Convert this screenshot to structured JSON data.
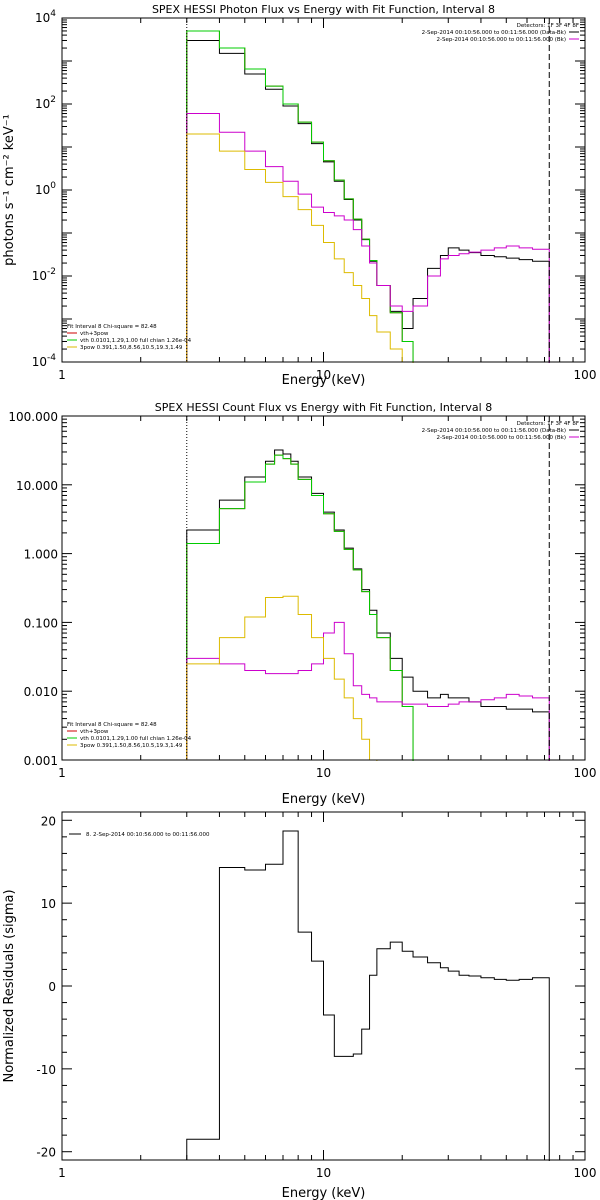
{
  "chart_data": [
    {
      "type": "line",
      "title": "SPEX HESSI Photon Flux vs Energy with Fit Function, Interval 8",
      "xlabel": "Energy (keV)",
      "ylabel": "photons s⁻¹ cm⁻² keV⁻¹",
      "xscale": "log",
      "yscale": "log",
      "xlim": [
        1,
        100
      ],
      "ylim": [
        0.0001,
        10000
      ],
      "x_tick_labels": [
        "1",
        "10",
        "100"
      ],
      "y_tick_labels": [
        "10",
        "10",
        "10",
        "10",
        "10"
      ],
      "y_tick_exponents": [
        "-4",
        "-2",
        "0",
        "2",
        "4"
      ],
      "vlines": [
        {
          "x": 3.0,
          "style": "dotted",
          "color": "#000000"
        },
        {
          "x": 73.0,
          "style": "dashed",
          "color": "#000000"
        }
      ],
      "legend_top_right": [
        {
          "label": "Detectors: 1F 3F 4F 8F",
          "color": null
        },
        {
          "label": "2-Sep-2014 00:10:56.000 to 00:11:56.000 (Data-Bk)",
          "color": "#000000"
        },
        {
          "label": "2-Sep-2014 00:10:56.000 to 00:11:56.000 (Bk)",
          "color": "#cc00cc"
        }
      ],
      "legend_bottom_left": [
        {
          "label": "Fit Interval 8   Chi-square = 82.48",
          "color": null
        },
        {
          "label": "vth+3pow",
          "color": "#cc0000"
        },
        {
          "label": "vth 0.0101,1.29,1.00  full chian 1.26e-04",
          "color": "#00cc00"
        },
        {
          "label": "3pow 0.391,1.50,8.56,10.5,19.3,1.49",
          "color": "#ddbb00"
        }
      ],
      "series": [
        {
          "color": "#000000",
          "edges": [
            3.0,
            4.0,
            5.0,
            6.0,
            7.0,
            8.0,
            9.0,
            10.0,
            11.0,
            12.0,
            13.0,
            14.0,
            15.0,
            16.0,
            18.0,
            20.0,
            22.0,
            25.0,
            28.0,
            30.0,
            33.0,
            36.0,
            40.0,
            45.0,
            50.0,
            56.0,
            63.0,
            73.0
          ],
          "values": [
            3000,
            1500,
            500,
            220,
            90,
            35,
            12,
            4.5,
            1.6,
            0.6,
            0.2,
            0.07,
            0.022,
            0.006,
            0.0015,
            0.0006,
            0.003,
            0.015,
            0.03,
            0.045,
            0.04,
            0.035,
            0.03,
            0.028,
            0.026,
            0.024,
            0.022
          ]
        },
        {
          "color": "#cc0000",
          "edges": [
            3.0,
            4.0,
            5.0,
            6.0,
            7.0,
            8.0,
            9.0,
            10.0,
            11.0,
            12.0,
            13.0,
            14.0,
            15.0,
            16.0,
            18.0,
            20.0,
            22.0
          ],
          "values": [
            5000,
            2000,
            650,
            260,
            100,
            38,
            13,
            4.8,
            1.7,
            0.62,
            0.21,
            0.072,
            0.023,
            0.006,
            0.0014,
            0.0003
          ]
        },
        {
          "color": "#00cc00",
          "edges": [
            3.0,
            4.0,
            5.0,
            6.0,
            7.0,
            8.0,
            9.0,
            10.0,
            11.0,
            12.0,
            13.0,
            14.0,
            15.0,
            16.0,
            18.0,
            20.0,
            22.0
          ],
          "values": [
            5000,
            2000,
            650,
            260,
            100,
            38,
            13,
            4.8,
            1.7,
            0.62,
            0.21,
            0.072,
            0.023,
            0.006,
            0.0014,
            0.0003
          ]
        },
        {
          "color": "#cc00cc",
          "edges": [
            3.0,
            4.0,
            5.0,
            6.0,
            7.0,
            8.0,
            9.0,
            10.0,
            11.0,
            12.0,
            13.0,
            14.0,
            15.0,
            16.0,
            18.0,
            20.0,
            22.0,
            25.0,
            28.0,
            30.0,
            33.0,
            36.0,
            40.0,
            45.0,
            50.0,
            56.0,
            63.0,
            73.0
          ],
          "values": [
            60,
            22,
            8,
            3.5,
            1.6,
            0.8,
            0.4,
            0.3,
            0.25,
            0.2,
            0.12,
            0.05,
            0.02,
            0.006,
            0.002,
            0.0015,
            0.002,
            0.01,
            0.025,
            0.03,
            0.033,
            0.036,
            0.04,
            0.045,
            0.05,
            0.045,
            0.042
          ]
        },
        {
          "color": "#ddbb00",
          "edges": [
            3.0,
            4.0,
            5.0,
            6.0,
            7.0,
            8.0,
            9.0,
            10.0,
            11.0,
            12.0,
            13.0,
            14.0,
            15.0,
            16.0,
            18.0,
            20.0,
            22.0
          ],
          "values": [
            20,
            8,
            3,
            1.5,
            0.7,
            0.35,
            0.15,
            0.06,
            0.025,
            0.012,
            0.006,
            0.003,
            0.0012,
            0.0005,
            0.0002,
            0.0001
          ]
        }
      ]
    },
    {
      "type": "line",
      "title": "SPEX HESSI Count Flux vs Energy with Fit Function, Interval 8",
      "xlabel": "Energy (keV)",
      "ylabel": "",
      "xscale": "log",
      "yscale": "log",
      "xlim": [
        1,
        100
      ],
      "ylim": [
        0.001,
        100
      ],
      "x_tick_labels": [
        "1",
        "10",
        "100"
      ],
      "y_tick_labels": [
        "100.000",
        "10.000",
        "1.000",
        "0.100",
        "0.010",
        "0.001"
      ],
      "vlines": [
        {
          "x": 3.0,
          "style": "dotted",
          "color": "#000000"
        },
        {
          "x": 73.0,
          "style": "dashed",
          "color": "#000000"
        }
      ],
      "legend_top_right": [
        {
          "label": "Detectors: 1F 3F 4F 8F",
          "color": null
        },
        {
          "label": "2-Sep-2014 00:10:56.000 to 00:11:56.000 (Data-Bk)",
          "color": "#000000"
        },
        {
          "label": "2-Sep-2014 00:10:56.000 to 00:11:56.000 (Bk)",
          "color": "#cc00cc"
        }
      ],
      "legend_bottom_left": [
        {
          "label": "Fit Interval 8   Chi-square = 82.48",
          "color": null
        },
        {
          "label": "vth+3pow",
          "color": "#cc0000"
        },
        {
          "label": "vth 0.0101,1.29,1.00  full chian 1.26e-04",
          "color": "#00cc00"
        },
        {
          "label": "3pow 0.391,1.50,8.56,10.5,19.3,1.49",
          "color": "#ddbb00"
        }
      ],
      "series": [
        {
          "color": "#000000",
          "edges": [
            3.0,
            4.0,
            5.0,
            6.0,
            6.5,
            7.0,
            7.5,
            8.0,
            9.0,
            10.0,
            11.0,
            12.0,
            13.0,
            14.0,
            15.0,
            16.0,
            18.0,
            20.0,
            22.0,
            25.0,
            28.0,
            30.0,
            33.0,
            36.0,
            40.0,
            45.0,
            50.0,
            56.0,
            63.0,
            73.0
          ],
          "values": [
            2.2,
            6.0,
            13.0,
            22.0,
            32.0,
            28.0,
            22.0,
            13.0,
            7.5,
            4.0,
            2.2,
            1.2,
            0.6,
            0.3,
            0.15,
            0.07,
            0.03,
            0.016,
            0.01,
            0.008,
            0.009,
            0.008,
            0.008,
            0.007,
            0.006,
            0.006,
            0.0055,
            0.0055,
            0.005
          ]
        },
        {
          "color": "#cc0000",
          "edges": [
            3.0,
            4.0,
            5.0,
            6.0,
            6.5,
            7.0,
            7.5,
            8.0,
            9.0,
            10.0,
            11.0,
            12.0,
            13.0,
            14.0,
            15.0,
            16.0,
            18.0,
            20.0,
            22.0
          ],
          "values": [
            1.4,
            4.5,
            11.0,
            20.0,
            27.0,
            24.0,
            20.0,
            12.0,
            7.0,
            3.8,
            2.1,
            1.15,
            0.58,
            0.28,
            0.13,
            0.06,
            0.02,
            0.006
          ]
        },
        {
          "color": "#00cc00",
          "edges": [
            3.0,
            4.0,
            5.0,
            6.0,
            6.5,
            7.0,
            7.5,
            8.0,
            9.0,
            10.0,
            11.0,
            12.0,
            13.0,
            14.0,
            15.0,
            16.0,
            18.0,
            20.0,
            22.0
          ],
          "values": [
            1.4,
            4.5,
            11.0,
            20.0,
            27.0,
            24.0,
            20.0,
            12.0,
            7.0,
            3.8,
            2.1,
            1.15,
            0.58,
            0.28,
            0.13,
            0.06,
            0.02,
            0.006
          ]
        },
        {
          "color": "#cc00cc",
          "edges": [
            3.0,
            4.0,
            5.0,
            6.0,
            7.0,
            8.0,
            9.0,
            10.0,
            11.0,
            12.0,
            13.0,
            14.0,
            15.0,
            16.0,
            18.0,
            20.0,
            22.0,
            25.0,
            28.0,
            30.0,
            33.0,
            36.0,
            40.0,
            45.0,
            50.0,
            56.0,
            63.0,
            73.0
          ],
          "values": [
            0.03,
            0.025,
            0.02,
            0.018,
            0.018,
            0.02,
            0.025,
            0.07,
            0.1,
            0.035,
            0.012,
            0.009,
            0.008,
            0.007,
            0.007,
            0.0065,
            0.0065,
            0.006,
            0.006,
            0.0065,
            0.007,
            0.007,
            0.0075,
            0.008,
            0.009,
            0.0085,
            0.008
          ]
        },
        {
          "color": "#ddbb00",
          "edges": [
            3.0,
            4.0,
            5.0,
            6.0,
            7.0,
            8.0,
            9.0,
            10.0,
            11.0,
            12.0,
            13.0,
            14.0,
            15.0,
            16.0,
            18.0
          ],
          "values": [
            0.025,
            0.06,
            0.12,
            0.23,
            0.24,
            0.13,
            0.06,
            0.03,
            0.015,
            0.008,
            0.004,
            0.002,
            0.001,
            0.0008
          ]
        }
      ]
    },
    {
      "type": "line",
      "title": "",
      "xlabel": "Energy (keV)",
      "ylabel": "Normalized Residuals (sigma)",
      "xscale": "log",
      "yscale": "linear",
      "xlim": [
        1,
        100
      ],
      "ylim": [
        -21,
        21
      ],
      "x_tick_labels": [
        "1",
        "10",
        "100"
      ],
      "y_ticks": [
        -20,
        -10,
        0,
        10,
        20
      ],
      "y_tick_labels": [
        "-20",
        "-10",
        "0",
        "10",
        "20"
      ],
      "legend_top_left": [
        {
          "label": "8. 2-Sep-2014 00:10:56.000 to 00:11:56.000",
          "color": "#000000"
        }
      ],
      "series": [
        {
          "color": "#000000",
          "edges": [
            3.0,
            4.0,
            5.0,
            6.0,
            7.0,
            8.0,
            9.0,
            10.0,
            11.0,
            12.0,
            13.0,
            14.0,
            15.0,
            16.0,
            18.0,
            20.0,
            22.0,
            25.0,
            28.0,
            30.0,
            33.0,
            36.0,
            40.0,
            45.0,
            50.0,
            56.0,
            63.0,
            73.0
          ],
          "values": [
            -18.5,
            14.3,
            14.0,
            14.7,
            18.7,
            6.5,
            3.0,
            -3.5,
            -8.5,
            -8.5,
            -8.2,
            -5.2,
            1.3,
            4.5,
            5.3,
            4.2,
            3.5,
            2.8,
            2.2,
            1.8,
            1.3,
            1.2,
            1.0,
            0.8,
            0.7,
            0.8,
            1.0
          ]
        }
      ]
    }
  ]
}
